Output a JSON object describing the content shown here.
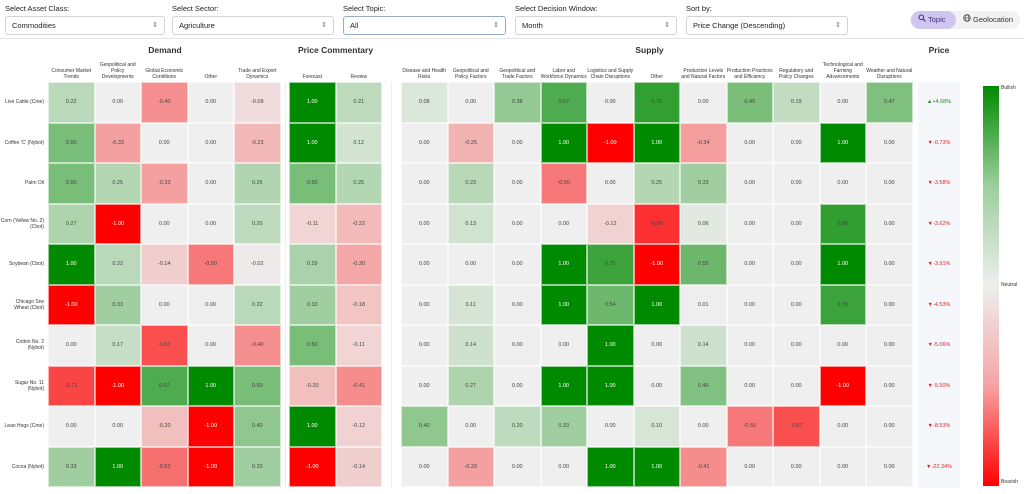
{
  "filters": {
    "asset_class": {
      "label": "Select Asset Class:",
      "value": "Commodities"
    },
    "sector": {
      "label": "Select Sector:",
      "value": "Agriculture"
    },
    "topic": {
      "label": "Select Topic:",
      "value": "All"
    },
    "window": {
      "label": "Select Decision Window:",
      "value": "Month"
    },
    "sort": {
      "label": "Sort by:",
      "value": "Price Change (Descending)"
    }
  },
  "view_toggle": {
    "topic_label": "Topic",
    "geo_label": "Geolocation",
    "active": "Topic"
  },
  "icons": {
    "select_chevron": "chevron-updown-icon",
    "topic": "search-icon",
    "geo": "globe-icon",
    "up": "triangle-up-icon",
    "down": "triangle-down-icon"
  },
  "groups": {
    "demand": "Demand",
    "commentary": "Price Commentary",
    "supply": "Supply",
    "price": "Price"
  },
  "columns": {
    "demand": [
      "Consumer Market Trends",
      "Geopolitical and Policy Developments",
      "Global Economic Conditions",
      "Other",
      "Trade and Export Dynamics"
    ],
    "commentary": [
      "Forecast",
      "Review"
    ],
    "supply": [
      "Disease and Health Risks",
      "Geopolitical and Policy Factors",
      "Geopolitical and Trade Factors",
      "Labor and Workforce Dynamics",
      "Logistics and Supply Chain Disruptions",
      "Other",
      "Production Levels and Natural Factors",
      "Production Practices and Efficiency",
      "Regulatory and Policy Changes",
      "Technological and Farming Advancements",
      "Weather and Natural Disruptions"
    ]
  },
  "rows": [
    {
      "name": "Live Cattle (Cme)",
      "demand": [
        "0.22",
        "0.00",
        "-0.40",
        "0.00",
        "-0.08"
      ],
      "commentary": [
        "1.00",
        "0.21"
      ],
      "supply": [
        "0.08",
        "0.00",
        "0.38",
        "0.67",
        "0.00",
        "0.79",
        "0.00",
        "0.49",
        "0.19",
        "0.00",
        "0.47"
      ],
      "price": "+4.68%",
      "dir": "up"
    },
    {
      "name": "Coffee 'C' (Nybot)",
      "demand": [
        "0.50",
        "-0.33",
        "0.00",
        "0.00",
        "-0.23"
      ],
      "commentary": [
        "1.00",
        "0.12"
      ],
      "supply": [
        "0.00",
        "-0.25",
        "0.00",
        "1.00",
        "-1.00",
        "1.00",
        "-0.34",
        "0.00",
        "0.00",
        "1.00",
        "0.00"
      ],
      "price": "-0.73%",
      "dir": "down"
    },
    {
      "name": "Palm Oil",
      "demand": [
        "0.50",
        "0.25",
        "-0.33",
        "0.00",
        "0.26"
      ],
      "commentary": [
        "0.50",
        "0.25"
      ],
      "supply": [
        "0.00",
        "0.23",
        "0.00",
        "-0.50",
        "0.00",
        "0.25",
        "0.33",
        "0.00",
        "0.00",
        "0.00",
        "0.00"
      ],
      "price": "-3.58%",
      "dir": "down"
    },
    {
      "name": "Corn (Yellow No. 2) (Cbot)",
      "demand": [
        "0.27",
        "-1.00",
        "0.00",
        "0.00",
        "0.20"
      ],
      "commentary": [
        "-0.11",
        "-0.22"
      ],
      "supply": [
        "0.00",
        "0.13",
        "0.00",
        "0.00",
        "-0.12",
        "-0.80",
        "0.06",
        "0.00",
        "0.00",
        "0.80",
        "0.00"
      ],
      "price": "-3.62%",
      "dir": "down"
    },
    {
      "name": "Soybean (Cbot)",
      "demand": [
        "1.00",
        "0.22",
        "-0.14",
        "-0.50",
        "-0.02"
      ],
      "commentary": [
        "0.29",
        "-0.30"
      ],
      "supply": [
        "0.00",
        "0.00",
        "0.00",
        "1.00",
        "0.75",
        "-1.00",
        "0.55",
        "0.00",
        "0.00",
        "1.00",
        "0.00"
      ],
      "price": "-3.91%",
      "dir": "down"
    },
    {
      "name": "Chicago Srw Wheat (Cbot)",
      "demand": [
        "-1.00",
        "0.33",
        "0.00",
        "0.00",
        "0.22"
      ],
      "commentary": [
        "0.33",
        "-0.18"
      ],
      "supply": [
        "0.00",
        "0.11",
        "0.00",
        "1.00",
        "0.54",
        "1.00",
        "0.01",
        "0.00",
        "0.00",
        "0.75",
        "0.00"
      ],
      "price": "-4.53%",
      "dir": "down"
    },
    {
      "name": "Cotton No. 2 (Nybot)",
      "demand": [
        "0.00",
        "0.17",
        "-0.67",
        "0.00",
        "-0.40"
      ],
      "commentary": [
        "0.50",
        "-0.11"
      ],
      "supply": [
        "0.00",
        "0.14",
        "0.00",
        "0.00",
        "1.00",
        "0.00",
        "0.14",
        "0.00",
        "0.00",
        "0.00",
        "0.00"
      ],
      "price": "-5.06%",
      "dir": "down"
    },
    {
      "name": "Sugar No. 11 (Nybot)",
      "demand": [
        "-0.71",
        "-1.00",
        "0.67",
        "1.00",
        "0.50"
      ],
      "commentary": [
        "-0.20",
        "-0.41"
      ],
      "supply": [
        "0.00",
        "0.27",
        "0.00",
        "1.00",
        "1.00",
        "0.00",
        "0.46",
        "0.00",
        "0.00",
        "-1.00",
        "0.00"
      ],
      "price": "-5.50%",
      "dir": "down"
    },
    {
      "name": "Lean Hogs (Cme)",
      "demand": [
        "0.00",
        "0.00",
        "-0.20",
        "-1.00",
        "0.40"
      ],
      "commentary": [
        "1.00",
        "-0.12"
      ],
      "supply": [
        "0.40",
        "0.00",
        "0.20",
        "0.33",
        "0.00",
        "0.10",
        "0.00",
        "-0.50",
        "-0.67",
        "0.00",
        "0.00"
      ],
      "price": "-8.53%",
      "dir": "down"
    },
    {
      "name": "Cocoa (Nybot)",
      "demand": [
        "0.33",
        "1.00",
        "-0.53",
        "-1.00",
        "0.33"
      ],
      "commentary": [
        "-1.00",
        "-0.14"
      ],
      "supply": [
        "0.00",
        "-0.33",
        "0.00",
        "0.00",
        "1.00",
        "1.00",
        "-0.41",
        "0.00",
        "0.00",
        "0.00",
        "0.00"
      ],
      "price": "-22.34%",
      "dir": "down"
    }
  ],
  "legend": {
    "top": "Bullish",
    "mid": "Neutral",
    "bottom": "Bearish"
  },
  "colors": {
    "bullish": "#008a00",
    "neutral": "#efefef",
    "bearish": "#ff0000",
    "price_up": "#1e8a1e",
    "price_down": "#d9262c",
    "toggle_active": "#cfc6ef"
  }
}
